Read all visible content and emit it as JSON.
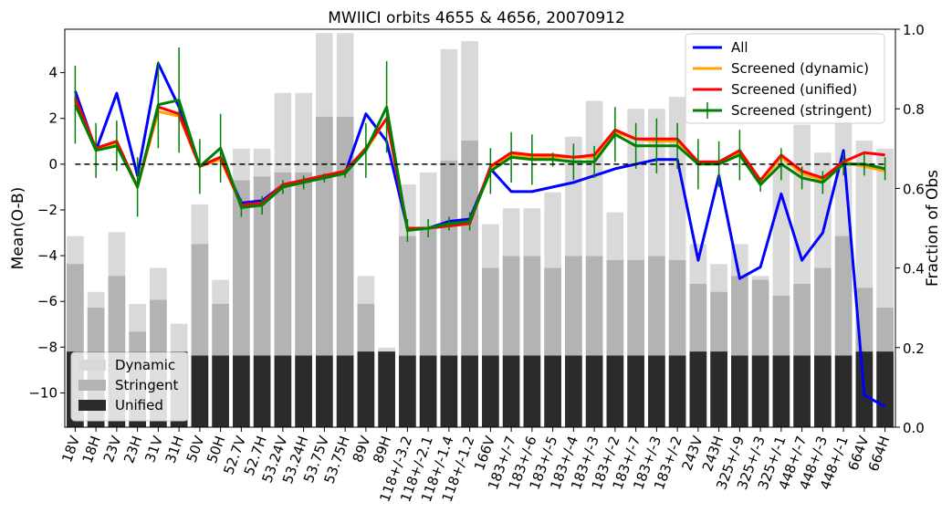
{
  "chart_data": {
    "type": "bar",
    "title": "MWIICI orbits 4655 & 4656, 20070912",
    "xlabel": "",
    "ylabel": "Mean(O-B)",
    "y2label": "Fraction of Obs",
    "ylim": [
      -11.5,
      5.9
    ],
    "y2lim": [
      0.0,
      1.0
    ],
    "yticks": [
      4,
      2,
      0,
      -2,
      -4,
      -6,
      -8,
      -10
    ],
    "y2ticks": [
      0.0,
      0.2,
      0.4,
      0.6,
      0.8,
      1.0
    ],
    "y2ticklabels": [
      "0.0",
      "0.2",
      "0.4",
      "0.6",
      "0.8",
      "1.0"
    ],
    "reference_line": 0,
    "categories": [
      "18V",
      "18H",
      "23V",
      "23H",
      "31V",
      "31H",
      "50V",
      "50H",
      "52.7V",
      "52.7H",
      "53.24V",
      "53.24H",
      "53.75V",
      "53.75H",
      "89V",
      "89H",
      "118+/-3.2",
      "118+/-2.1",
      "118+/-1.4",
      "118+/-1.2",
      "166V",
      "183+/-7",
      "183+/-6",
      "183+/-5",
      "183+/-4",
      "183+/-3",
      "183+/-2",
      "183+/-7",
      "183+/-3",
      "183+/-2",
      "243V",
      "243H",
      "325+/-9",
      "325+/-3",
      "325+/-1",
      "448+/-7",
      "448+/-3",
      "448+/-1",
      "664V",
      "664H"
    ],
    "bar_series": [
      {
        "name": "Dynamic",
        "color": "#d9d9d9",
        "values": [
          0.48,
          0.34,
          0.49,
          0.31,
          0.4,
          0.26,
          0.56,
          0.37,
          0.7,
          0.7,
          0.84,
          0.84,
          0.99,
          0.99,
          0.38,
          0.2,
          0.61,
          0.64,
          0.95,
          0.97,
          0.51,
          0.55,
          0.55,
          0.59,
          0.73,
          0.82,
          0.54,
          0.8,
          0.8,
          0.83,
          0.46,
          0.41,
          0.46,
          0.38,
          0.67,
          0.76,
          0.69,
          0.79,
          0.72,
          0.7
        ]
      },
      {
        "name": "Stringent",
        "color": "#b3b3b3",
        "values": [
          0.41,
          0.3,
          0.38,
          0.24,
          0.32,
          0.19,
          0.46,
          0.31,
          0.62,
          0.63,
          0.64,
          0.64,
          0.78,
          0.78,
          0.31,
          0.19,
          0.48,
          0.5,
          0.67,
          0.72,
          0.4,
          0.43,
          0.43,
          0.4,
          0.43,
          0.43,
          0.42,
          0.42,
          0.43,
          0.42,
          0.36,
          0.34,
          0.38,
          0.37,
          0.33,
          0.36,
          0.4,
          0.48,
          0.35,
          0.3
        ]
      },
      {
        "name": "Unified",
        "color": "#2b2b2b",
        "values": [
          0.19,
          0.19,
          0.19,
          0.19,
          0.19,
          0.19,
          0.18,
          0.18,
          0.18,
          0.18,
          0.18,
          0.18,
          0.18,
          0.18,
          0.19,
          0.19,
          0.18,
          0.18,
          0.18,
          0.18,
          0.18,
          0.18,
          0.18,
          0.18,
          0.18,
          0.18,
          0.18,
          0.18,
          0.18,
          0.18,
          0.19,
          0.19,
          0.18,
          0.18,
          0.18,
          0.18,
          0.18,
          0.18,
          0.19,
          0.19
        ]
      }
    ],
    "line_series": [
      {
        "name": "All",
        "color": "#0000ff",
        "values": [
          3.2,
          0.6,
          3.1,
          -0.5,
          4.4,
          2.5,
          -0.1,
          0.3,
          -1.7,
          -1.6,
          -0.9,
          -0.7,
          -0.5,
          -0.4,
          2.2,
          1.0,
          -2.8,
          -2.8,
          -2.5,
          -2.4,
          -0.2,
          -1.2,
          -1.2,
          -1.0,
          -0.8,
          -0.5,
          -0.2,
          0.0,
          0.2,
          0.2,
          -4.2,
          -0.5,
          -5.0,
          -4.5,
          -1.3,
          -4.2,
          -3.0,
          0.6,
          -10.1,
          -10.6
        ]
      },
      {
        "name": "Screened (dynamic)",
        "color": "#ffa500",
        "values": [
          2.8,
          0.6,
          0.9,
          -1.0,
          2.3,
          2.1,
          -0.1,
          0.2,
          -1.8,
          -1.7,
          -0.9,
          -0.7,
          -0.5,
          -0.3,
          0.6,
          2.0,
          -2.8,
          -2.8,
          -2.7,
          -2.6,
          -0.2,
          0.4,
          0.3,
          0.3,
          0.3,
          0.3,
          1.4,
          1.1,
          1.0,
          1.0,
          0.1,
          0.0,
          0.5,
          -0.8,
          0.3,
          -0.4,
          -0.7,
          0.1,
          -0.1,
          -0.3
        ]
      },
      {
        "name": "Screened (unified)",
        "color": "#ff0000",
        "values": [
          2.9,
          0.7,
          1.0,
          -1.0,
          2.5,
          2.2,
          -0.1,
          0.3,
          -1.8,
          -1.7,
          -0.9,
          -0.7,
          -0.5,
          -0.3,
          0.7,
          2.0,
          -2.8,
          -2.8,
          -2.7,
          -2.6,
          -0.1,
          0.5,
          0.4,
          0.4,
          0.3,
          0.4,
          1.5,
          1.1,
          1.1,
          1.1,
          0.1,
          0.1,
          0.6,
          -0.7,
          0.4,
          -0.3,
          -0.6,
          0.1,
          0.5,
          0.4
        ]
      },
      {
        "name": "Screened (stringent)",
        "color": "#008000",
        "values": [
          2.6,
          0.6,
          0.8,
          -1.0,
          2.6,
          2.8,
          -0.1,
          0.7,
          -1.9,
          -1.8,
          -1.0,
          -0.8,
          -0.6,
          -0.4,
          0.6,
          2.5,
          -2.9,
          -2.8,
          -2.6,
          -2.5,
          -0.3,
          0.3,
          0.2,
          0.2,
          0.1,
          0.1,
          1.3,
          0.8,
          0.8,
          0.8,
          0.0,
          0.0,
          0.4,
          -0.9,
          0.0,
          -0.6,
          -0.8,
          0.0,
          0.0,
          -0.2
        ],
        "errors": [
          1.7,
          1.2,
          1.1,
          1.3,
          1.9,
          2.3,
          1.2,
          1.5,
          0.4,
          0.4,
          0.3,
          0.3,
          0.2,
          0.2,
          1.2,
          2.0,
          0.5,
          0.4,
          0.3,
          0.4,
          1.0,
          1.1,
          1.1,
          0.3,
          0.8,
          0.7,
          1.2,
          1.0,
          1.2,
          1.0,
          1.1,
          1.0,
          1.1,
          0.3,
          0.7,
          0.5,
          0.5,
          0.5,
          0.5,
          0.5
        ]
      }
    ],
    "legend_lines_position": "upper-right",
    "legend_bars_position": "lower-left",
    "grid": false
  }
}
